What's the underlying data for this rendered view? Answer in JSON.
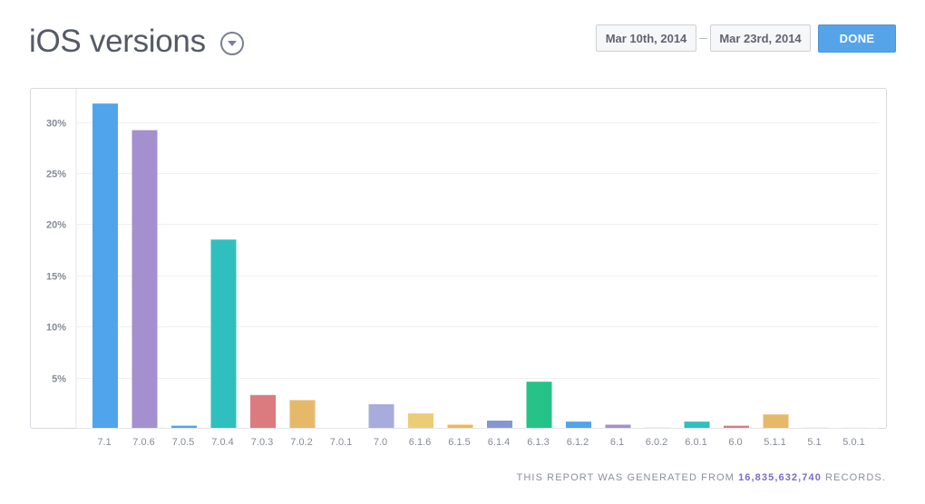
{
  "header": {
    "title": "iOS versions",
    "start_date": "Mar 10th, 2014",
    "end_date": "Mar 23rd, 2014",
    "done_label": "DONE"
  },
  "footer": {
    "prefix": "THIS REPORT WAS GENERATED FROM",
    "records": "16,835,632,740",
    "suffix": "RECORDS."
  },
  "colors": {
    "blue": "#50a4ec",
    "purple": "#a48fcf",
    "teal": "#30bfbf",
    "red": "#dc7b7f",
    "orange": "#e6b96a",
    "lavender": "#a7acdd",
    "yellow": "#ebcd78",
    "amber": "#f0b84e",
    "indigo": "#8597d2",
    "green": "#25c387",
    "grid": "#eef0f2",
    "axis_text": "#868b96"
  },
  "chart_data": {
    "type": "bar",
    "title": "iOS versions",
    "xlabel": "",
    "ylabel": "",
    "ylim": [
      0,
      32
    ],
    "yticks": [
      5,
      10,
      15,
      20,
      25,
      30
    ],
    "ytick_labels": [
      "5%",
      "10%",
      "15%",
      "20%",
      "25%",
      "30%"
    ],
    "categories": [
      "7.1",
      "7.0.6",
      "7.0.5",
      "7.0.4",
      "7.0.3",
      "7.0.2",
      "7.0.1",
      "7.0",
      "6.1.6",
      "6.1.5",
      "6.1.4",
      "6.1.3",
      "6.1.2",
      "6.1",
      "6.0.2",
      "6.0.1",
      "6.0",
      "5.1.1",
      "5.1",
      "5.0.1"
    ],
    "values": [
      31.8,
      29.2,
      0.3,
      18.5,
      3.3,
      2.8,
      0.0,
      2.4,
      1.5,
      0.4,
      0.8,
      4.6,
      0.7,
      0.4,
      0.1,
      0.7,
      0.3,
      1.4,
      0.1,
      0.1
    ],
    "bar_colors": [
      "blue",
      "purple",
      "blue",
      "teal",
      "red",
      "orange",
      "purple",
      "lavender",
      "yellow",
      "amber",
      "indigo",
      "green",
      "blue",
      "purple",
      "teal",
      "teal",
      "red",
      "orange",
      "lavender",
      "yellow"
    ]
  }
}
